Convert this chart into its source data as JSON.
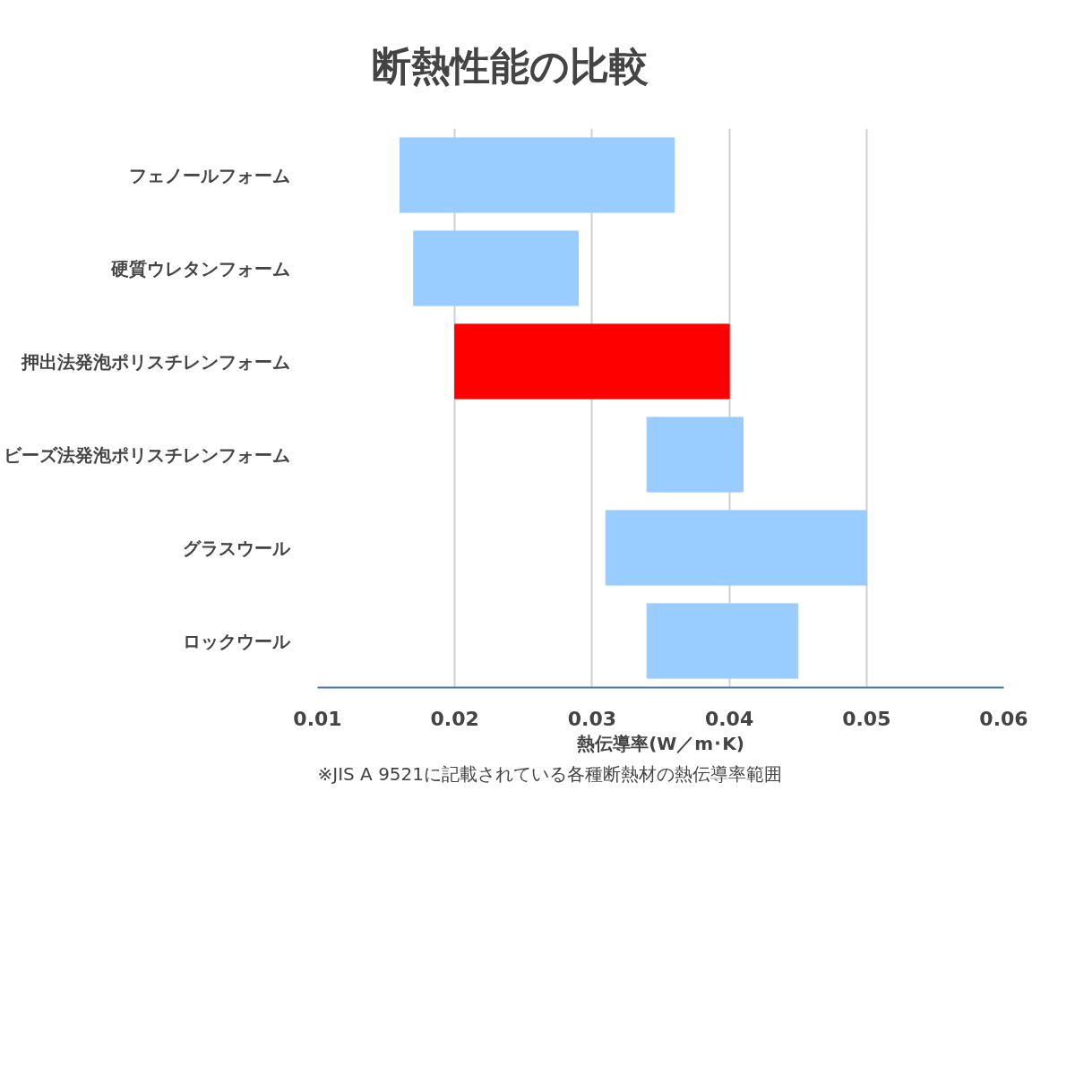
{
  "chart_data": {
    "type": "bar",
    "orientation": "horizontal",
    "title": "断熱性能の比較",
    "categories": [
      "フェノールフォーム",
      "硬質ウレタンフォーム",
      "押出法発泡ポリスチレンフォーム",
      "ビーズ法発泡ポリスチレンフォーム",
      "グラスウール",
      "ロックウール"
    ],
    "base": [
      0.016,
      0.017,
      0.02,
      0.034,
      0.031,
      0.034
    ],
    "values": [
      0.02,
      0.012,
      0.02,
      0.007,
      0.019,
      0.011
    ],
    "colors": [
      "#99ccff",
      "#99ccff",
      "#ff0000",
      "#99ccff",
      "#99ccff",
      "#99ccff"
    ],
    "xlim": [
      0.01,
      0.06
    ],
    "xticks": [
      0.01,
      0.02,
      0.03,
      0.04,
      0.05,
      0.06
    ],
    "xlabel": "熱伝導率(W／m･K)",
    "grid": "x",
    "annotations": [
      "※JIS A 9521に記載されている各種断熱材の熱伝導率範囲"
    ]
  }
}
